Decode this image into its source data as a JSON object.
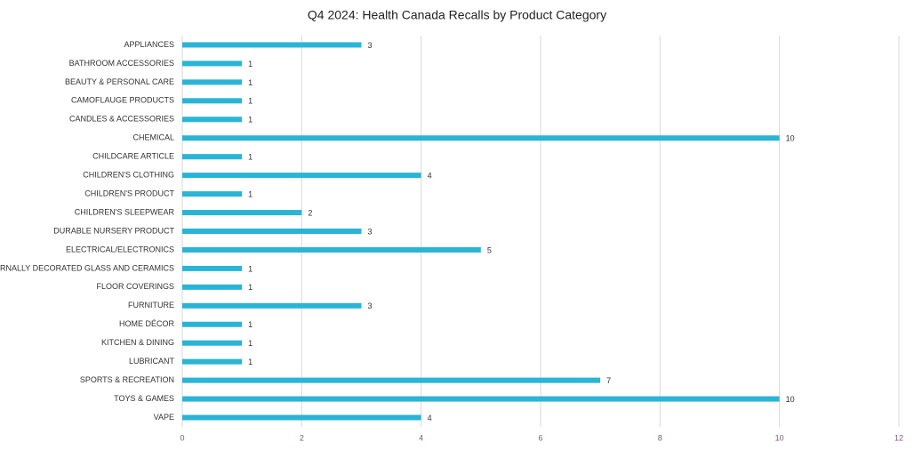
{
  "chart_data": {
    "type": "bar",
    "orientation": "horizontal",
    "title": "Q4 2024: Health Canada Recalls by Product Category",
    "categories": [
      "APPLIANCES",
      "BATHROOM ACCESSORIES",
      "BEAUTY & PERSONAL CARE",
      "CAMOFLAUGE PRODUCTS",
      "CANDLES & ACCESSORIES",
      "CHEMICAL",
      "CHILDCARE ARTICLE",
      "CHILDREN'S CLOTHING",
      "CHILDREN'S PRODUCT",
      "CHILDREN'S SLEEPWEAR",
      "DURABLE NURSERY PRODUCT",
      "ELECTRICAL/ELECTRONICS",
      "EXTERNALLY DECORATED GLASS AND CERAMICS",
      "FLOOR COVERINGS",
      "FURNITURE",
      "HOME DÉCOR",
      "KITCHEN & DINING",
      "LUBRICANT",
      "SPORTS & RECREATION",
      "TOYS & GAMES",
      "VAPE"
    ],
    "values": [
      3,
      1,
      1,
      1,
      1,
      10,
      1,
      4,
      1,
      2,
      3,
      5,
      1,
      1,
      3,
      1,
      1,
      1,
      7,
      10,
      4
    ],
    "color": "#2ab4d6",
    "xlim": [
      0,
      12
    ],
    "xticks": [
      0,
      2,
      4,
      6,
      8,
      10,
      12
    ],
    "grid": true,
    "data_labels": true
  }
}
